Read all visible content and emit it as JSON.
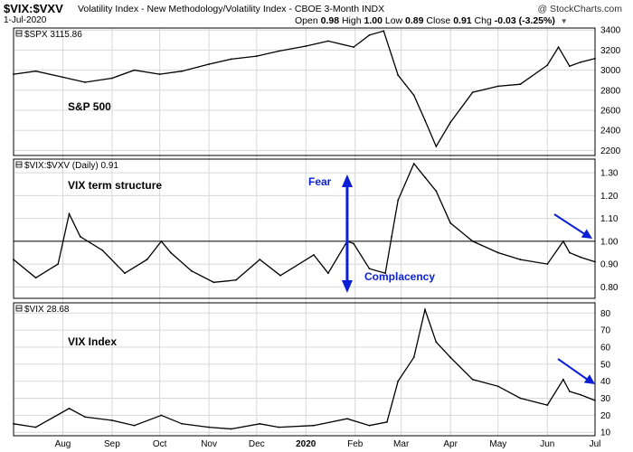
{
  "header": {
    "ticker": "$VIX:$VXV",
    "name": "Volatility Index - New Methodology/Volatility Index - CBOE 3-Month",
    "exchange": "INDX",
    "date": "1-Jul-2020",
    "open_label": "Open",
    "open": "0.98",
    "high_label": "High",
    "high": "1.00",
    "low_label": "Low",
    "low": "0.89",
    "close_label": "Close",
    "close": "0.91",
    "chg_label": "Chg",
    "chg": "-0.03 (-3.25%)",
    "site": "@ StockCharts.com"
  },
  "colors": {
    "price": "#000000",
    "grid": "#d8d8d8",
    "arrow": "#0b1fd6",
    "label": "#0b1fd6"
  },
  "chart_data": [
    {
      "type": "line",
      "legend": "$SPX 3115.86",
      "label": "S&P 500",
      "ylim": [
        2150,
        3420
      ],
      "yticks": [
        2200,
        2400,
        2600,
        2800,
        3000,
        3200,
        3400
      ],
      "x": [
        "2019-07-01",
        "2019-07-15",
        "2019-08-01",
        "2019-08-15",
        "2019-09-01",
        "2019-09-15",
        "2019-10-01",
        "2019-10-15",
        "2019-11-01",
        "2019-11-15",
        "2019-12-01",
        "2019-12-15",
        "2020-01-01",
        "2020-01-15",
        "2020-01-31",
        "2020-02-10",
        "2020-02-19",
        "2020-02-28",
        "2020-03-09",
        "2020-03-16",
        "2020-03-23",
        "2020-04-01",
        "2020-04-15",
        "2020-05-01",
        "2020-05-15",
        "2020-06-01",
        "2020-06-08",
        "2020-06-15",
        "2020-06-22",
        "2020-07-01"
      ],
      "values": [
        2960,
        2990,
        2930,
        2880,
        2920,
        3000,
        2960,
        2990,
        3060,
        3110,
        3140,
        3190,
        3240,
        3290,
        3230,
        3350,
        3390,
        2950,
        2750,
        2500,
        2240,
        2480,
        2780,
        2840,
        2860,
        3050,
        3230,
        3040,
        3080,
        3116
      ]
    },
    {
      "type": "line",
      "legend": "$VIX:$VXV (Daily) 0.91",
      "label": "VIX term structure",
      "ylim": [
        0.75,
        1.36
      ],
      "yticks": [
        0.8,
        0.9,
        1.0,
        1.1,
        1.2,
        1.3
      ],
      "reference_line": 1.0,
      "x": [
        "2019-07-01",
        "2019-07-15",
        "2019-07-29",
        "2019-08-05",
        "2019-08-12",
        "2019-08-26",
        "2019-09-09",
        "2019-09-23",
        "2019-10-02",
        "2019-10-08",
        "2019-10-21",
        "2019-11-04",
        "2019-11-18",
        "2019-12-03",
        "2019-12-16",
        "2020-01-06",
        "2020-01-15",
        "2020-01-27",
        "2020-01-31",
        "2020-02-10",
        "2020-02-20",
        "2020-02-24",
        "2020-02-28",
        "2020-03-09",
        "2020-03-16",
        "2020-03-23",
        "2020-04-01",
        "2020-04-15",
        "2020-05-01",
        "2020-05-15",
        "2020-06-01",
        "2020-06-11",
        "2020-06-15",
        "2020-06-22",
        "2020-07-01"
      ],
      "values": [
        0.92,
        0.84,
        0.9,
        1.12,
        1.02,
        0.96,
        0.86,
        0.92,
        1.0,
        0.95,
        0.87,
        0.82,
        0.83,
        0.92,
        0.85,
        0.94,
        0.86,
        1.0,
        0.99,
        0.88,
        0.86,
        1.02,
        1.18,
        1.34,
        1.28,
        1.22,
        1.08,
        1.0,
        0.95,
        0.92,
        0.9,
        1.0,
        0.95,
        0.93,
        0.91
      ]
    },
    {
      "type": "line",
      "legend": "$VIX 28.68",
      "label": "VIX Index",
      "ylim": [
        8,
        86
      ],
      "yticks": [
        10,
        20,
        30,
        40,
        50,
        60,
        70,
        80
      ],
      "x": [
        "2019-07-01",
        "2019-07-15",
        "2019-08-05",
        "2019-08-15",
        "2019-09-01",
        "2019-09-15",
        "2019-10-02",
        "2019-10-15",
        "2019-11-01",
        "2019-11-15",
        "2019-12-03",
        "2019-12-15",
        "2020-01-06",
        "2020-01-27",
        "2020-02-10",
        "2020-02-21",
        "2020-02-28",
        "2020-03-09",
        "2020-03-16",
        "2020-03-23",
        "2020-04-01",
        "2020-04-15",
        "2020-05-01",
        "2020-05-15",
        "2020-06-01",
        "2020-06-11",
        "2020-06-15",
        "2020-06-22",
        "2020-07-01"
      ],
      "values": [
        15,
        13,
        24,
        19,
        17,
        14,
        20,
        15,
        13,
        12,
        15,
        13,
        14,
        18,
        14,
        16,
        40,
        54,
        82,
        63,
        54,
        41,
        37,
        30,
        26,
        41,
        34,
        32,
        28.68
      ]
    }
  ],
  "x_axis_labels": [
    "Aug",
    "Sep",
    "Oct",
    "Nov",
    "Dec",
    "2020",
    "Feb",
    "Mar",
    "Apr",
    "May",
    "Jun",
    "Jul"
  ],
  "annotations": {
    "fear": "Fear",
    "complacency": "Complacency"
  }
}
